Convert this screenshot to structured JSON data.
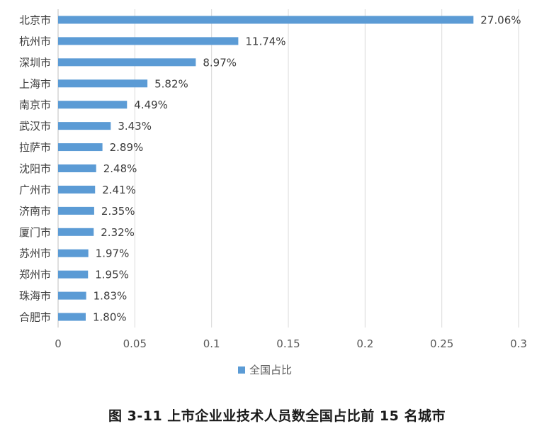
{
  "caption": "图 3-11  上市企业业技术人员数全国占比前 15 名城市",
  "colors": {
    "bar": "#5b9bd5",
    "grid": "#d9d9d9",
    "axis": "#bfbfbf"
  },
  "chart_data": {
    "type": "bar",
    "orientation": "horizontal",
    "title": "",
    "xlabel": "",
    "ylabel": "",
    "xlim": [
      0,
      0.3
    ],
    "x_ticks": [
      "0",
      "0.05",
      "0.1",
      "0.15",
      "0.2",
      "0.25",
      "0.3"
    ],
    "grid": true,
    "legend_position": "bottom",
    "categories": [
      "北京市",
      "杭州市",
      "深圳市",
      "上海市",
      "南京市",
      "武汉市",
      "拉萨市",
      "沈阳市",
      "广州市",
      "济南市",
      "厦门市",
      "苏州市",
      "郑州市",
      "珠海市",
      "合肥市"
    ],
    "series": [
      {
        "name": "全国占比",
        "values": [
          0.2706,
          0.1174,
          0.0897,
          0.0582,
          0.0449,
          0.0343,
          0.0289,
          0.0248,
          0.0241,
          0.0235,
          0.0232,
          0.0197,
          0.0195,
          0.0183,
          0.018
        ],
        "labels": [
          "27.06%",
          "11.74%",
          "8.97%",
          "5.82%",
          "4.49%",
          "3.43%",
          "2.89%",
          "2.48%",
          "2.41%",
          "2.35%",
          "2.32%",
          "1.97%",
          "1.95%",
          "1.83%",
          "1.80%"
        ]
      }
    ]
  }
}
